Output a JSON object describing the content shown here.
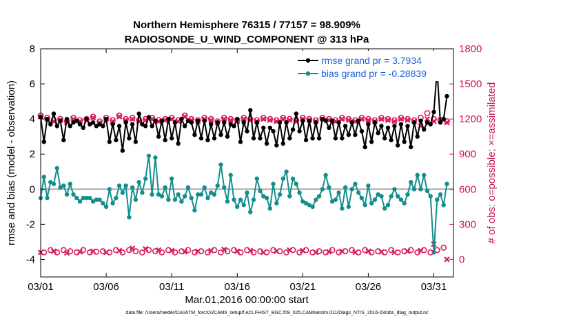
{
  "chart_data": {
    "type": "line",
    "title_line1": "Northern Hemisphere 76315 / 77157 = 98.909%",
    "title_line2": "RADIOSONDE_U_WIND_COMPONENT @ 313 hPa",
    "xlabel": "Mar.01,2016 00:00:00 start",
    "ylabel_left": "rmse and bias (model - observation)",
    "ylabel_right": "# of obs: o=possible; ×=assimilated",
    "footnote": "data file: /Users/raeder/DAI/ATM_forcXX/CAM6_setup/f.e21.FHIST_BGC.f09_025.CAM6assim.011/Diags_NTrS_2016-03/obs_diag_output.nc",
    "xlim": [
      0,
      31.5
    ],
    "ylim_left": [
      -5,
      8
    ],
    "ylim_right": [
      -150,
      1800
    ],
    "xticks": [
      0,
      5,
      10,
      15,
      20,
      25,
      30
    ],
    "xtick_labels": [
      "03/01",
      "03/06",
      "03/11",
      "03/16",
      "03/21",
      "03/26",
      "03/31"
    ],
    "yticks_left": [
      -4,
      -2,
      0,
      2,
      4,
      6,
      8
    ],
    "yticks_right": [
      0,
      300,
      600,
      900,
      1200,
      1500,
      1800
    ],
    "legend": {
      "position": "top-right",
      "entries": [
        {
          "label": "rmse grand pr = 3.7934",
          "color": "#000000"
        },
        {
          "label": "bias grand pr = -0.28839",
          "color": "#128f8c"
        }
      ]
    },
    "colors": {
      "rmse": "#000000",
      "bias": "#128f8c",
      "obs": "#d81b60",
      "zero_line": "#aaaaaa"
    },
    "series": [
      {
        "name": "rmse",
        "axis": "left",
        "x": [
          0.0,
          0.25,
          0.5,
          0.75,
          1.0,
          1.25,
          1.5,
          1.75,
          2.0,
          2.25,
          2.5,
          2.75,
          3.0,
          3.25,
          3.5,
          3.75,
          4.0,
          4.25,
          4.5,
          4.75,
          5.0,
          5.25,
          5.5,
          5.75,
          6.0,
          6.25,
          6.5,
          6.75,
          7.0,
          7.25,
          7.5,
          7.75,
          8.0,
          8.25,
          8.5,
          8.75,
          9.0,
          9.25,
          9.5,
          9.75,
          10.0,
          10.25,
          10.5,
          10.75,
          11.0,
          11.25,
          11.5,
          11.75,
          12.0,
          12.25,
          12.5,
          12.75,
          13.0,
          13.25,
          13.5,
          13.75,
          14.0,
          14.25,
          14.5,
          14.75,
          15.0,
          15.25,
          15.5,
          15.75,
          16.0,
          16.25,
          16.5,
          16.75,
          17.0,
          17.25,
          17.5,
          17.75,
          18.0,
          18.25,
          18.5,
          18.75,
          19.0,
          19.25,
          19.5,
          19.75,
          20.0,
          20.25,
          20.5,
          20.75,
          21.0,
          21.25,
          21.5,
          21.75,
          22.0,
          22.25,
          22.5,
          22.75,
          23.0,
          23.25,
          23.5,
          23.75,
          24.0,
          24.25,
          24.5,
          24.75,
          25.0,
          25.25,
          25.5,
          25.75,
          26.0,
          26.25,
          26.5,
          26.75,
          27.0,
          27.25,
          27.5,
          27.75,
          28.0,
          28.25,
          28.5,
          28.75,
          29.0,
          29.25,
          29.5,
          29.75,
          30.0,
          30.25,
          30.5,
          30.75,
          31.0
        ],
        "values": [
          4.1,
          2.7,
          4.0,
          3.7,
          4.3,
          3.6,
          3.9,
          2.8,
          4.0,
          3.6,
          3.8,
          3.9,
          3.7,
          3.5,
          4.0,
          3.7,
          3.8,
          3.6,
          3.7,
          3.6,
          4.0,
          2.7,
          3.7,
          2.8,
          3.6,
          2.2,
          3.8,
          2.9,
          3.7,
          2.7,
          4.3,
          3.7,
          3.6,
          4.1,
          3.6,
          3.9,
          3.0,
          3.9,
          2.8,
          4.0,
          2.9,
          3.8,
          2.6,
          4.0,
          3.6,
          3.9,
          3.8,
          3.1,
          3.9,
          2.9,
          3.9,
          2.8,
          3.7,
          2.9,
          3.8,
          3.1,
          3.8,
          3.0,
          3.7,
          3.6,
          4.0,
          2.7,
          3.8,
          3.3,
          4.5,
          2.9,
          3.8,
          2.9,
          3.5,
          2.6,
          3.5,
          3.3,
          2.5,
          3.8,
          2.6,
          3.8,
          2.9,
          3.4,
          4.3,
          3.3,
          3.9,
          2.8,
          3.9,
          2.9,
          3.8,
          2.9,
          4.0,
          3.9,
          3.5,
          3.9,
          2.9,
          3.8,
          2.9,
          3.6,
          3.1,
          3.8,
          3.1,
          3.9,
          3.3,
          2.4,
          3.7,
          2.7,
          3.8,
          3.2,
          3.6,
          2.9,
          3.5,
          2.8,
          3.6,
          2.5,
          3.7,
          2.7,
          3.6,
          2.4,
          3.8,
          3.0,
          3.9,
          3.4,
          3.8,
          3.7,
          4.4,
          6.8,
          3.8,
          4.0,
          5.3
        ]
      },
      {
        "name": "bias",
        "axis": "left",
        "x": [
          0.0,
          0.25,
          0.5,
          0.75,
          1.0,
          1.25,
          1.5,
          1.75,
          2.0,
          2.25,
          2.5,
          2.75,
          3.0,
          3.25,
          3.5,
          3.75,
          4.0,
          4.25,
          4.5,
          4.75,
          5.0,
          5.25,
          5.5,
          5.75,
          6.0,
          6.25,
          6.5,
          6.75,
          7.0,
          7.25,
          7.5,
          7.75,
          8.0,
          8.25,
          8.5,
          8.75,
          9.0,
          9.25,
          9.5,
          9.75,
          10.0,
          10.25,
          10.5,
          10.75,
          11.0,
          11.25,
          11.5,
          11.75,
          12.0,
          12.25,
          12.5,
          12.75,
          13.0,
          13.25,
          13.5,
          13.75,
          14.0,
          14.25,
          14.5,
          14.75,
          15.0,
          15.25,
          15.5,
          15.75,
          16.0,
          16.25,
          16.5,
          16.75,
          17.0,
          17.25,
          17.5,
          17.75,
          18.0,
          18.25,
          18.5,
          18.75,
          19.0,
          19.25,
          19.5,
          19.75,
          20.0,
          20.25,
          20.5,
          20.75,
          21.0,
          21.25,
          21.5,
          21.75,
          22.0,
          22.25,
          22.5,
          22.75,
          23.0,
          23.25,
          23.5,
          23.75,
          24.0,
          24.25,
          24.5,
          24.75,
          25.0,
          25.25,
          25.5,
          25.75,
          26.0,
          26.25,
          26.5,
          26.75,
          27.0,
          27.25,
          27.5,
          27.75,
          28.0,
          28.25,
          28.5,
          28.75,
          29.0,
          29.25,
          29.5,
          29.75,
          30.0,
          30.25,
          30.5,
          30.75,
          31.0
        ],
        "values": [
          -0.5,
          0.7,
          -0.5,
          0.4,
          0.3,
          1.2,
          0.1,
          0.2,
          -0.3,
          0.3,
          -0.3,
          -0.5,
          -0.7,
          -0.5,
          -0.5,
          -0.5,
          -0.7,
          -0.6,
          -0.6,
          -0.8,
          -1.0,
          0.0,
          -0.8,
          -0.5,
          0.2,
          -0.2,
          0.2,
          -1.6,
          0.1,
          -0.6,
          0.4,
          -0.2,
          0.6,
          1.9,
          -0.3,
          1.8,
          -0.3,
          -0.4,
          0.1,
          -0.6,
          0.6,
          -0.6,
          -0.3,
          -0.7,
          -0.4,
          0.1,
          -0.5,
          -1.2,
          -0.3,
          -0.3,
          0.1,
          -0.5,
          -0.2,
          -0.3,
          0.2,
          1.4,
          0.1,
          -0.7,
          0.8,
          -0.6,
          -1.0,
          -0.6,
          -0.9,
          -0.2,
          -1.3,
          -0.6,
          0.6,
          -0.1,
          -0.4,
          -0.5,
          -1.1,
          0.3,
          -0.8,
          -0.3,
          0.6,
          1.0,
          -0.4,
          0.6,
          0.3,
          -0.2,
          -0.7,
          -0.8,
          -0.9,
          -1.0,
          -0.6,
          -0.4,
          0.0,
          0.8,
          0.1,
          -0.7,
          -0.6,
          -0.2,
          -1.1,
          0.1,
          -1.0,
          0.0,
          0.3,
          -0.2,
          -0.5,
          -0.9,
          0.2,
          -0.8,
          -0.6,
          -0.3,
          -0.4,
          -1.1,
          -0.9,
          -0.4,
          0.0,
          -0.4,
          -0.6,
          -0.8,
          -0.3,
          0.4,
          0.0,
          0.8,
          0.0,
          0.8,
          -0.1,
          -0.4,
          -3.6,
          -0.6,
          -0.3,
          -0.9,
          0.3
        ]
      },
      {
        "name": "obs possible",
        "axis": "right",
        "marker": "o",
        "x": [
          0.0,
          0.25,
          0.5,
          0.75,
          1.0,
          1.25,
          1.5,
          1.75,
          2.0,
          2.25,
          2.5,
          2.75,
          3.0,
          3.25,
          3.5,
          3.75,
          4.0,
          4.25,
          4.5,
          4.75,
          5.0,
          5.25,
          5.5,
          5.75,
          6.0,
          6.25,
          6.5,
          6.75,
          7.0,
          7.25,
          7.5,
          7.75,
          8.0,
          8.25,
          8.5,
          8.75,
          9.0,
          9.25,
          9.5,
          9.75,
          10.0,
          10.25,
          10.5,
          10.75,
          11.0,
          11.25,
          11.5,
          11.75,
          12.0,
          12.25,
          12.5,
          12.75,
          13.0,
          13.25,
          13.5,
          13.75,
          14.0,
          14.25,
          14.5,
          14.75,
          15.0,
          15.25,
          15.5,
          15.75,
          16.0,
          16.25,
          16.5,
          16.75,
          17.0,
          17.25,
          17.5,
          17.75,
          18.0,
          18.25,
          18.5,
          18.75,
          19.0,
          19.25,
          19.5,
          19.75,
          20.0,
          20.25,
          20.5,
          20.75,
          21.0,
          21.25,
          21.5,
          21.75,
          22.0,
          22.25,
          22.5,
          22.75,
          23.0,
          23.25,
          23.5,
          23.75,
          24.0,
          24.25,
          24.5,
          24.75,
          25.0,
          25.25,
          25.5,
          25.75,
          26.0,
          26.25,
          26.5,
          26.75,
          27.0,
          27.25,
          27.5,
          27.75,
          28.0,
          28.25,
          28.5,
          28.75,
          29.0,
          29.25,
          29.5,
          29.75,
          30.0,
          30.25,
          30.5,
          30.75,
          31.0
        ],
        "values": [
          1230,
          60,
          1210,
          80,
          1190,
          60,
          1200,
          80,
          1180,
          70,
          1210,
          60,
          1190,
          80,
          1200,
          60,
          1220,
          65,
          1180,
          70,
          1210,
          60,
          1190,
          80,
          1230,
          60,
          1200,
          80,
          1210,
          70,
          1190,
          60,
          1200,
          80,
          1210,
          70,
          1190,
          60,
          1200,
          80,
          1210,
          60,
          1190,
          70,
          1230,
          80,
          1200,
          60,
          1190,
          70,
          1210,
          60,
          1200,
          80,
          1180,
          60,
          1210,
          70,
          1200,
          80,
          1190,
          60,
          1210,
          80,
          1200,
          60,
          1190,
          70,
          1210,
          60,
          1200,
          80,
          1190,
          70,
          1210,
          60,
          1200,
          80,
          1190,
          60,
          1210,
          80,
          1200,
          60,
          1190,
          70,
          1210,
          60,
          1200,
          80,
          1190,
          60,
          1210,
          70,
          1200,
          80,
          1190,
          60,
          1210,
          80,
          1200,
          60,
          1190,
          70,
          1210,
          60,
          1200,
          80,
          1190,
          60,
          1210,
          70,
          1200,
          80,
          1190,
          60,
          1210,
          80,
          1250,
          60,
          1200,
          80,
          1190,
          100,
          1180
        ]
      },
      {
        "name": "obs assimilated",
        "axis": "right",
        "marker": "x",
        "x": [
          0.0,
          0.5,
          1.0,
          1.5,
          2.0,
          2.5,
          3.0,
          3.5,
          4.0,
          4.5,
          5.0,
          5.5,
          6.0,
          6.5,
          7.0,
          7.5,
          8.0,
          8.5,
          9.0,
          9.5,
          10.0,
          10.5,
          11.0,
          11.5,
          12.0,
          12.5,
          13.0,
          13.5,
          14.0,
          14.5,
          15.0,
          15.5,
          16.0,
          16.5,
          17.0,
          17.5,
          18.0,
          18.5,
          19.0,
          19.5,
          20.0,
          20.5,
          21.0,
          21.5,
          22.0,
          22.5,
          23.0,
          23.5,
          24.0,
          24.5,
          25.0,
          25.5,
          26.0,
          26.5,
          27.0,
          27.5,
          28.0,
          28.5,
          29.0,
          29.5,
          30.0,
          30.5,
          31.0
        ],
        "values": [
          1220,
          1200,
          1180,
          1190,
          1170,
          1200,
          1180,
          1190,
          1210,
          1170,
          1200,
          1180,
          1220,
          1190,
          1200,
          1180,
          1190,
          1200,
          1180,
          1190,
          1200,
          1180,
          1220,
          1190,
          1180,
          1200,
          1190,
          1170,
          1200,
          1190,
          1180,
          1200,
          1190,
          1180,
          1200,
          1190,
          1180,
          1200,
          1190,
          1180,
          1200,
          1190,
          1180,
          1200,
          1190,
          1180,
          1200,
          1190,
          1180,
          1200,
          1190,
          1180,
          1200,
          1190,
          1180,
          1200,
          1190,
          1180,
          1140,
          1200,
          1180,
          1190,
          1170
        ]
      },
      {
        "name": "obs low count",
        "axis": "right",
        "marker": "x",
        "x": [
          0.0,
          1.0,
          2.0,
          3.0,
          4.0,
          5.0,
          6.0,
          7.0,
          8.0,
          9.0,
          10.0,
          11.0,
          12.0,
          13.0,
          14.0,
          15.0,
          16.0,
          17.0,
          18.0,
          19.0,
          20.0,
          21.0,
          22.0,
          23.0,
          24.0,
          25.0,
          26.0,
          27.0,
          28.0,
          29.0,
          30.0,
          31.0
        ],
        "values": [
          60,
          70,
          55,
          65,
          70,
          60,
          75,
          95,
          90,
          80,
          75,
          65,
          70,
          75,
          85,
          70,
          75,
          60,
          70,
          80,
          75,
          60,
          65,
          70,
          60,
          70,
          65,
          60,
          70,
          75,
          130,
          0
        ]
      }
    ]
  }
}
